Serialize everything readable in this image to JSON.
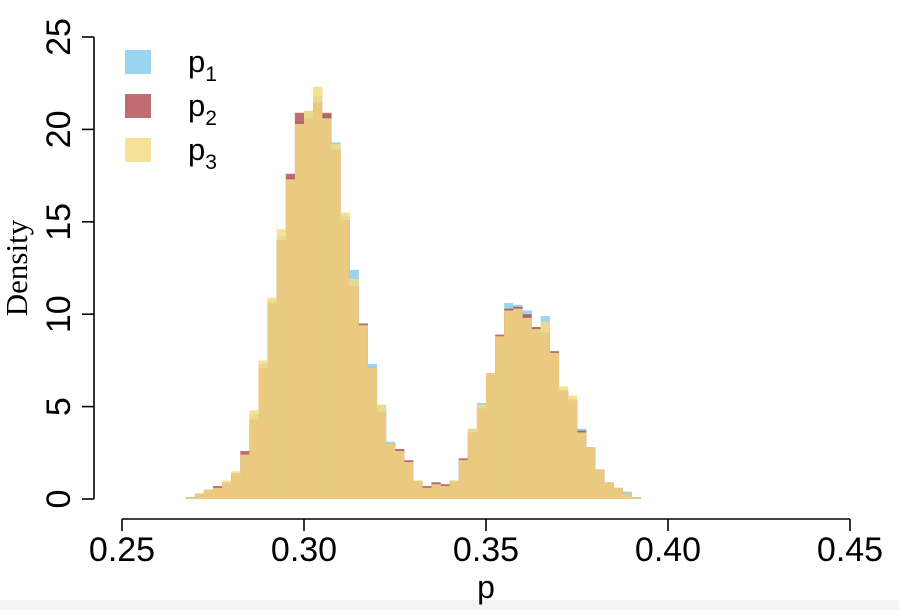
{
  "chart_data": {
    "type": "histogram",
    "xlabel": "p",
    "ylabel": "Density",
    "xlim": [
      0.25,
      0.45
    ],
    "ylim": [
      0,
      25
    ],
    "x_ticks": [
      "0.25",
      "0.30",
      "0.35",
      "0.40",
      "0.45"
    ],
    "x_tick_values": [
      0.25,
      0.3,
      0.35,
      0.4,
      0.45
    ],
    "y_ticks": [
      "0",
      "5",
      "10",
      "15",
      "20",
      "25"
    ],
    "y_tick_values": [
      0,
      5,
      10,
      15,
      20,
      25
    ],
    "legend_position": "top-left",
    "grid": false,
    "bin_width": 0.0025,
    "bin_starts_at": 0.2675,
    "series": [
      {
        "name": "p",
        "subscript": "1",
        "color": "#87CEEB",
        "opacity": 0.85,
        "values": [
          0.1,
          0.3,
          0.4,
          0.6,
          0.9,
          1.3,
          2.4,
          4.6,
          7.3,
          10.7,
          14.2,
          17.4,
          20.4,
          21.0,
          21.8,
          20.8,
          19.3,
          15.3,
          12.4,
          9.3,
          7.3,
          5.1,
          3.1,
          2.7,
          2.0,
          1.0,
          0.6,
          0.9,
          0.7,
          0.9,
          2.0,
          3.8,
          5.2,
          6.8,
          8.7,
          10.6,
          10.5,
          10.2,
          9.3,
          9.9,
          7.8,
          5.8,
          5.2,
          3.8,
          2.7,
          1.6,
          0.9,
          0.6,
          0.4,
          0.1,
          0.0
        ]
      },
      {
        "name": "p",
        "subscript": "2",
        "color": "#B2474E",
        "opacity": 0.8,
        "values": [
          0.1,
          0.3,
          0.5,
          0.7,
          0.9,
          1.4,
          2.6,
          4.3,
          7.1,
          10.6,
          14.0,
          17.6,
          20.9,
          20.6,
          21.5,
          20.9,
          18.9,
          15.1,
          11.5,
          9.5,
          7.1,
          4.7,
          3.0,
          2.7,
          2.1,
          1.0,
          0.7,
          0.9,
          0.8,
          1.0,
          2.2,
          3.6,
          4.9,
          6.8,
          8.9,
          10.3,
          10.4,
          10.0,
          9.3,
          9.0,
          8.0,
          5.9,
          5.4,
          3.7,
          2.8,
          1.6,
          0.9,
          0.6,
          0.3,
          0.1,
          0.0
        ]
      },
      {
        "name": "p",
        "subscript": "3",
        "color": "#F4DC84",
        "opacity": 0.85,
        "values": [
          0.1,
          0.3,
          0.5,
          0.6,
          1.0,
          1.5,
          2.4,
          4.8,
          7.5,
          10.9,
          14.6,
          17.3,
          20.3,
          21.0,
          22.3,
          20.6,
          19.2,
          15.5,
          11.9,
          9.4,
          7.1,
          5.1,
          3.0,
          2.6,
          2.0,
          1.0,
          0.6,
          0.8,
          0.7,
          1.0,
          2.1,
          3.8,
          5.1,
          6.8,
          8.8,
          10.2,
          10.3,
          9.8,
          9.2,
          9.6,
          7.9,
          6.1,
          5.6,
          3.6,
          2.8,
          1.6,
          0.9,
          0.6,
          0.3,
          0.1,
          0.0
        ]
      }
    ]
  }
}
